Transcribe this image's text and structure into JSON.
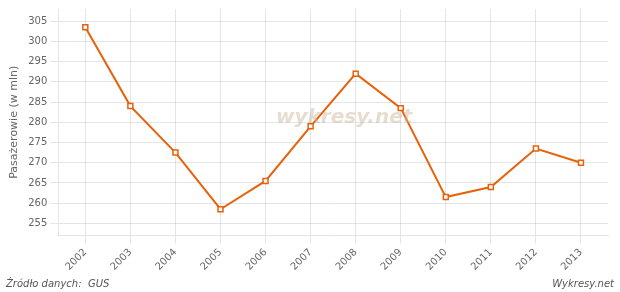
{
  "chart_data": {
    "type": "line",
    "ylabel": "Pasażerowie (w mln)",
    "x": [
      2002,
      2003,
      2004,
      2005,
      2006,
      2007,
      2008,
      2009,
      2010,
      2011,
      2012,
      2013
    ],
    "values": [
      303.5,
      284.0,
      272.5,
      258.5,
      265.5,
      279.0,
      292.0,
      283.5,
      261.5,
      264.0,
      273.5,
      270.0
    ],
    "color": "#e8610a",
    "marker": "square",
    "xlim": [
      2001.4,
      2013.6
    ],
    "xticks": [
      2002,
      2003,
      2004,
      2005,
      2006,
      2007,
      2008,
      2009,
      2010,
      2011,
      2012,
      2013
    ],
    "ylim": [
      252,
      308
    ],
    "yticks": [
      255,
      260,
      265,
      270,
      275,
      280,
      285,
      290,
      295,
      300,
      305
    ],
    "grid": true,
    "annotations": [
      "wykresy.net",
      "Źródło danych:  GUS",
      "Wykresy.net"
    ]
  }
}
